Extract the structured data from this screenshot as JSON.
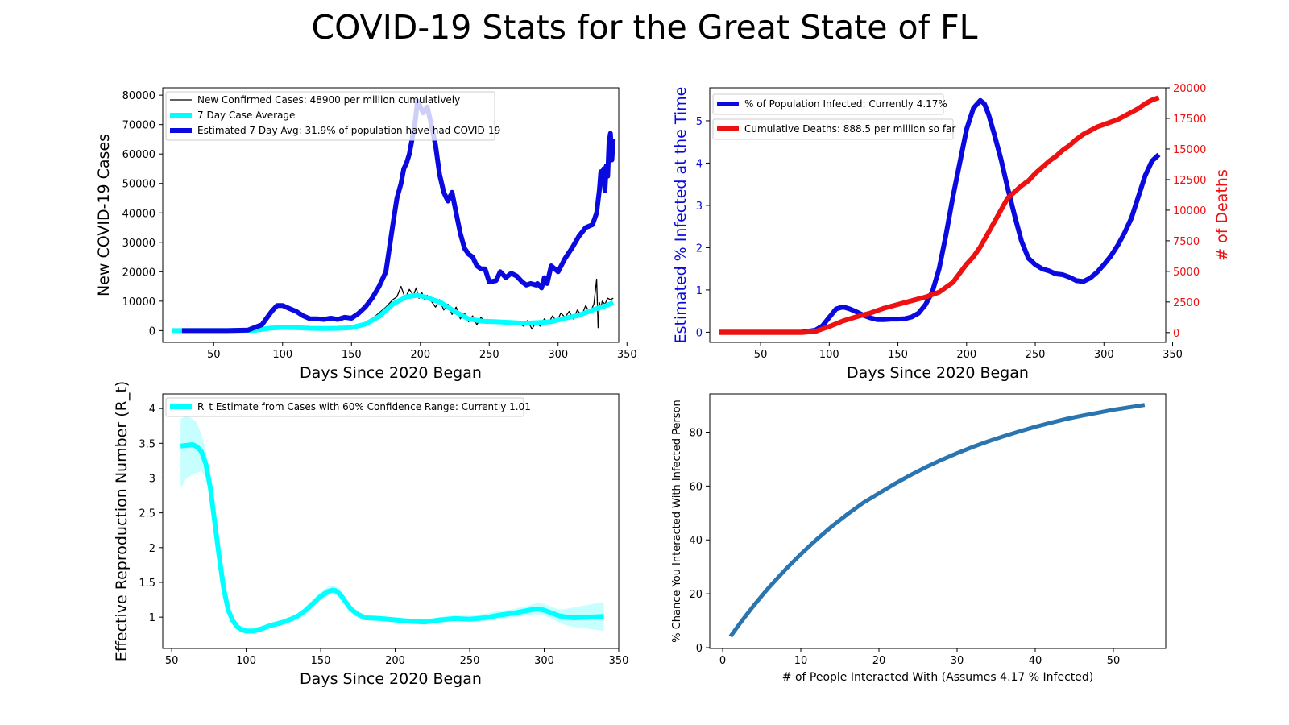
{
  "page": {
    "title": "COVID-19 Stats for the Great State of FL"
  },
  "colors": {
    "blue": "#0a0ae0",
    "cyan": "#00ffff",
    "red": "#ee1111",
    "black": "#000000",
    "steel": "#2a75b0"
  },
  "chart_data": [
    {
      "type": "line",
      "xlabel": "Days Since 2020 Began",
      "ylabel": "New COVID-19 Cases",
      "xlim": [
        13,
        344
      ],
      "ylim": [
        -4000,
        82500
      ],
      "xticks": [
        50,
        100,
        150,
        200,
        250,
        300,
        350
      ],
      "yticks": [
        0,
        10000,
        20000,
        30000,
        40000,
        50000,
        60000,
        70000,
        80000
      ],
      "grid": false,
      "legend_position": "top-left",
      "series": [
        {
          "name": "New Confirmed Cases: 48900 per million cumulatively",
          "color": "#000000",
          "width": 1.3,
          "x": [
            20,
            60,
            80,
            88,
            95,
            100,
            105,
            110,
            115,
            120,
            125,
            130,
            135,
            140,
            145,
            150,
            155,
            160,
            165,
            170,
            175,
            180,
            183,
            186,
            189,
            192,
            195,
            197,
            199,
            201,
            203,
            205,
            208,
            211,
            214,
            217,
            220,
            223,
            226,
            229,
            232,
            235,
            238,
            241,
            244,
            247,
            250,
            255,
            260,
            265,
            270,
            275,
            278,
            281,
            284,
            287,
            290,
            293,
            296,
            299,
            302,
            305,
            308,
            311,
            314,
            317,
            320,
            323,
            326,
            328,
            329,
            330,
            331,
            332,
            334,
            336,
            338,
            340
          ],
          "y": [
            0,
            0,
            200,
            500,
            900,
            1300,
            1000,
            1200,
            900,
            700,
            800,
            600,
            900,
            700,
            800,
            1000,
            1500,
            2500,
            4000,
            6000,
            8000,
            10500,
            11500,
            15000,
            11000,
            14000,
            12000,
            14500,
            11000,
            13000,
            10500,
            12000,
            10000,
            8000,
            10500,
            7000,
            9000,
            5500,
            8000,
            4000,
            6000,
            3000,
            5000,
            2000,
            4500,
            3000,
            3000,
            2500,
            3500,
            2000,
            3000,
            1500,
            3500,
            500,
            3000,
            1500,
            4000,
            2500,
            5000,
            3000,
            6000,
            4500,
            6500,
            4000,
            7000,
            5000,
            8500,
            6000,
            9000,
            17500,
            1000,
            9500,
            7500,
            10000,
            9000,
            11000,
            10500,
            11000
          ]
        },
        {
          "name": "7 Day Case Average",
          "color": "#00ffff",
          "width": 6,
          "x": [
            20,
            60,
            80,
            90,
            100,
            110,
            120,
            130,
            140,
            150,
            160,
            170,
            180,
            190,
            198,
            205,
            215,
            225,
            235,
            245,
            255,
            265,
            275,
            285,
            295,
            305,
            315,
            325,
            330,
            335,
            340
          ],
          "y": [
            0,
            0,
            100,
            800,
            1100,
            1000,
            800,
            700,
            800,
            1000,
            2200,
            4800,
            9000,
            11500,
            12000,
            11200,
            9500,
            6500,
            4000,
            3200,
            3000,
            2800,
            2500,
            2700,
            3000,
            4200,
            5200,
            7000,
            7800,
            8500,
            9500
          ]
        },
        {
          "name": "Estimated 7 Day Avg: 31.9% of population have had COVID-19",
          "color": "#0a0ae0",
          "width": 6,
          "x": [
            27,
            60,
            75,
            85,
            92,
            96,
            100,
            105,
            110,
            115,
            120,
            125,
            130,
            135,
            140,
            145,
            150,
            155,
            160,
            165,
            170,
            175,
            180,
            183,
            186,
            188,
            190,
            192,
            194,
            196,
            198,
            200,
            202,
            205,
            208,
            211,
            214,
            217,
            220,
            223,
            226,
            229,
            232,
            235,
            238,
            241,
            244,
            247,
            250,
            255,
            258,
            262,
            266,
            270,
            274,
            277,
            280,
            284,
            285,
            287,
            288,
            290,
            292,
            295,
            300,
            305,
            310,
            315,
            320,
            325,
            328,
            330,
            331,
            332,
            333,
            334,
            335,
            336,
            337,
            338,
            339,
            340
          ],
          "y": [
            0,
            0,
            200,
            2000,
            6500,
            8500,
            8500,
            7500,
            6500,
            5000,
            4000,
            4000,
            3800,
            4200,
            3800,
            4500,
            4200,
            5800,
            8000,
            11000,
            15000,
            20000,
            36000,
            45000,
            50000,
            55000,
            57000,
            60000,
            65000,
            70000,
            78000,
            76000,
            74000,
            76000,
            70000,
            63000,
            53000,
            47000,
            44000,
            47000,
            40000,
            33000,
            28000,
            26000,
            25000,
            22000,
            21000,
            21000,
            16500,
            17000,
            20000,
            18000,
            19500,
            18500,
            16500,
            15500,
            16000,
            15500,
            16000,
            15000,
            14500,
            18000,
            16000,
            22000,
            20000,
            24500,
            28000,
            32000,
            35000,
            36000,
            40000,
            48000,
            54000,
            50000,
            55000,
            47500,
            56000,
            52500,
            64000,
            67000,
            58000,
            65000
          ]
        }
      ]
    },
    {
      "type": "line",
      "xlabel": "Days Since 2020 Began",
      "ylabel": "Estimated % Infected at the Time",
      "ylabel_right": "# of Deaths",
      "xlim": [
        13,
        345
      ],
      "ylim": [
        -0.24,
        5.78
      ],
      "ylim_right": [
        -800,
        20000
      ],
      "xticks": [
        50,
        100,
        150,
        200,
        250,
        300,
        350
      ],
      "yticks": [
        0,
        1,
        2,
        3,
        4,
        5
      ],
      "yticks_right": [
        0,
        2500,
        5000,
        7500,
        10000,
        12500,
        15000,
        17500,
        20000
      ],
      "grid": false,
      "legend_position": "top-left",
      "series": [
        {
          "name": "% of Population Infected: Currently 4.17%",
          "axis": "left",
          "color": "#0a0ae0",
          "width": 6,
          "x": [
            20,
            80,
            90,
            95,
            100,
            105,
            110,
            115,
            120,
            125,
            130,
            135,
            140,
            145,
            150,
            155,
            160,
            165,
            170,
            175,
            180,
            185,
            190,
            195,
            200,
            205,
            210,
            213,
            216,
            220,
            225,
            230,
            235,
            240,
            245,
            250,
            255,
            260,
            265,
            270,
            275,
            280,
            285,
            290,
            295,
            300,
            305,
            310,
            315,
            320,
            325,
            330,
            335,
            340
          ],
          "y": [
            0,
            0,
            0.05,
            0.15,
            0.35,
            0.55,
            0.6,
            0.55,
            0.48,
            0.4,
            0.34,
            0.3,
            0.3,
            0.31,
            0.31,
            0.32,
            0.36,
            0.45,
            0.65,
            0.95,
            1.5,
            2.3,
            3.2,
            4.0,
            4.8,
            5.3,
            5.48,
            5.4,
            5.15,
            4.7,
            4.1,
            3.4,
            2.75,
            2.15,
            1.75,
            1.6,
            1.5,
            1.45,
            1.38,
            1.36,
            1.3,
            1.22,
            1.2,
            1.28,
            1.42,
            1.6,
            1.8,
            2.05,
            2.35,
            2.7,
            3.2,
            3.7,
            4.05,
            4.2
          ]
        },
        {
          "name": "Cumulative Deaths: 888.5 per million so far",
          "axis": "right",
          "color": "#ee1111",
          "width": 6,
          "x": [
            20,
            80,
            90,
            100,
            110,
            120,
            130,
            140,
            150,
            160,
            170,
            180,
            190,
            200,
            205,
            210,
            215,
            220,
            225,
            230,
            235,
            240,
            245,
            250,
            255,
            260,
            265,
            270,
            275,
            280,
            285,
            290,
            295,
            300,
            305,
            310,
            315,
            320,
            325,
            330,
            335,
            340
          ],
          "y": [
            0,
            0,
            100,
            500,
            950,
            1300,
            1600,
            2000,
            2300,
            2600,
            2900,
            3300,
            4100,
            5600,
            6200,
            7000,
            8000,
            9000,
            10000,
            11000,
            11500,
            12000,
            12400,
            13000,
            13500,
            14000,
            14400,
            14900,
            15300,
            15800,
            16200,
            16500,
            16800,
            17000,
            17200,
            17400,
            17700,
            18000,
            18300,
            18700,
            19000,
            19200
          ]
        }
      ]
    },
    {
      "type": "line",
      "xlabel": "Days Since 2020 Began",
      "ylabel": "Effective Reproduction Number (R_t)",
      "xlim": [
        44,
        350
      ],
      "ylim": [
        0.55,
        4.21
      ],
      "xticks": [
        50,
        100,
        150,
        200,
        250,
        300,
        350
      ],
      "yticks": [
        1.0,
        1.5,
        2.0,
        2.5,
        3.0,
        3.5,
        4.0
      ],
      "grid": false,
      "legend_position": "top-left",
      "series": [
        {
          "name": "R_t Estimate from Cases with 60% Confidence Range: Currently 1.01",
          "color": "#00ffff",
          "width": 6,
          "x": [
            56,
            60,
            64,
            67,
            70,
            73,
            76,
            79,
            82,
            85,
            88,
            91,
            94,
            97,
            100,
            105,
            110,
            115,
            120,
            125,
            130,
            135,
            140,
            145,
            150,
            155,
            158,
            160,
            163,
            166,
            170,
            175,
            180,
            190,
            200,
            210,
            220,
            230,
            240,
            250,
            260,
            270,
            280,
            290,
            295,
            300,
            305,
            310,
            315,
            320,
            330,
            340
          ],
          "y": [
            3.46,
            3.47,
            3.48,
            3.45,
            3.38,
            3.2,
            2.85,
            2.35,
            1.85,
            1.4,
            1.1,
            0.95,
            0.86,
            0.82,
            0.8,
            0.8,
            0.83,
            0.87,
            0.9,
            0.93,
            0.97,
            1.02,
            1.1,
            1.2,
            1.3,
            1.37,
            1.39,
            1.38,
            1.33,
            1.24,
            1.12,
            1.04,
            0.99,
            0.98,
            0.96,
            0.94,
            0.93,
            0.96,
            0.98,
            0.97,
            0.99,
            1.03,
            1.06,
            1.1,
            1.12,
            1.1,
            1.06,
            1.02,
            1.0,
            0.99,
            1.0,
            1.01
          ],
          "band_low": [
            2.85,
            3.0,
            3.05,
            3.08,
            3.1,
            3.0,
            2.75,
            2.3,
            1.8,
            1.36,
            1.07,
            0.92,
            0.83,
            0.79,
            0.77,
            0.77,
            0.8,
            0.84,
            0.87,
            0.9,
            0.94,
            0.99,
            1.06,
            1.15,
            1.25,
            1.31,
            1.33,
            1.32,
            1.28,
            1.2,
            1.08,
            1.0,
            0.96,
            0.95,
            0.93,
            0.91,
            0.9,
            0.92,
            0.94,
            0.93,
            0.94,
            0.97,
            1.0,
            1.03,
            1.04,
            1.02,
            0.98,
            0.92,
            0.88,
            0.86,
            0.83,
            0.8
          ],
          "band_high": [
            3.85,
            3.9,
            3.85,
            3.8,
            3.62,
            3.4,
            2.95,
            2.4,
            1.9,
            1.45,
            1.14,
            0.99,
            0.9,
            0.86,
            0.84,
            0.84,
            0.87,
            0.91,
            0.94,
            0.97,
            1.01,
            1.06,
            1.15,
            1.26,
            1.36,
            1.44,
            1.46,
            1.45,
            1.39,
            1.29,
            1.16,
            1.08,
            1.03,
            1.02,
            1.0,
            0.98,
            0.97,
            1.0,
            1.03,
            1.02,
            1.05,
            1.09,
            1.12,
            1.17,
            1.2,
            1.19,
            1.15,
            1.11,
            1.12,
            1.14,
            1.18,
            1.22
          ]
        }
      ]
    },
    {
      "type": "line",
      "xlabel": "# of People Interacted With (Assumes 4.17 % Infected)",
      "ylabel": "% Chance You Interacted With Infected Person",
      "xlim": [
        -1.65,
        56.7
      ],
      "ylim": [
        -0.3,
        94.2
      ],
      "xticks": [
        0,
        10,
        20,
        30,
        40,
        50
      ],
      "yticks": [
        0,
        20,
        40,
        60,
        80
      ],
      "grid": false,
      "series": [
        {
          "color": "#2a75b0",
          "width": 5,
          "x": [
            1,
            2,
            3,
            4,
            5,
            6,
            8,
            10,
            12,
            14,
            16,
            18,
            20,
            22,
            24,
            26,
            28,
            30,
            32,
            34,
            36,
            38,
            40,
            42,
            44,
            46,
            48,
            50,
            52,
            54
          ],
          "y": [
            4.17,
            8.17,
            12.0,
            15.7,
            19.2,
            22.6,
            28.9,
            34.7,
            40.1,
            45.1,
            49.6,
            53.8,
            57.3,
            60.8,
            64.0,
            67.0,
            69.7,
            72.2,
            74.5,
            76.6,
            78.5,
            80.3,
            82.0,
            83.5,
            84.9,
            86.1,
            87.2,
            88.3,
            89.2,
            90.1
          ]
        }
      ]
    }
  ]
}
